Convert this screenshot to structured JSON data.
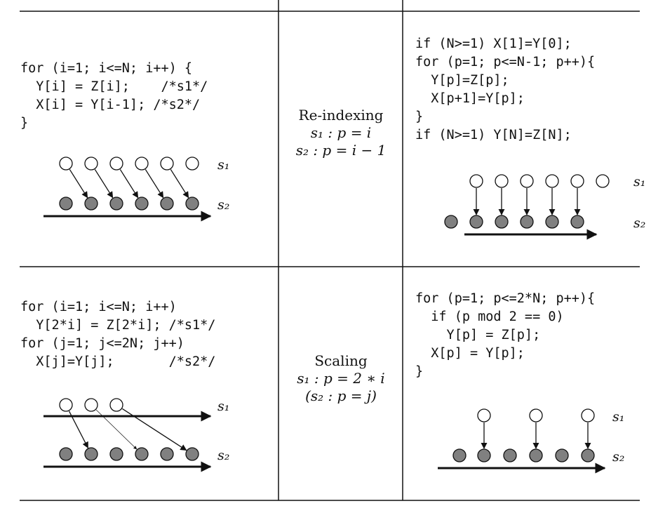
{
  "rows": [
    {
      "left_code": [
        "for (i=1; i<=N; i++) {",
        "  Y[i] = Z[i];    /*s1*/",
        "  X[i] = Y[i-1]; /*s2*/",
        "}"
      ],
      "transform": {
        "name": "Re-indexing",
        "lines": [
          "s₁ : p = i",
          "s₂ : p = i − 1"
        ]
      },
      "right_code": [
        "if (N>=1) X[1]=Y[0];",
        "for (p=1; p<=N-1; p++){",
        "  Y[p]=Z[p];",
        "  X[p+1]=Y[p];",
        "}",
        "if (N>=1) Y[N]=Z[N];"
      ],
      "left_diagram": {
        "s1_label": "s₁",
        "s2_label": "s₂"
      },
      "right_diagram": {
        "s1_label": "s₁",
        "s2_label": "s₂"
      }
    },
    {
      "left_code": [
        "for (i=1; i<=N; i++)",
        "  Y[2*i] = Z[2*i]; /*s1*/",
        "for (j=1; j<=2N; j++)",
        "  X[j]=Y[j];       /*s2*/"
      ],
      "transform": {
        "name": "Scaling",
        "lines": [
          "s₁ : p = 2 ∗ i",
          "(s₂ : p = j)"
        ]
      },
      "right_code": [
        "for (p=1; p<=2*N; p++){",
        "  if (p mod 2 == 0)",
        "    Y[p] = Z[p];",
        "  X[p] = Y[p];",
        "}"
      ],
      "left_diagram": {
        "s1_label": "s₁",
        "s2_label": "s₂"
      },
      "right_diagram": {
        "s1_label": "s₁",
        "s2_label": "s₂"
      }
    }
  ],
  "colors": {
    "white_node": "#ffffff",
    "gray_node": "#808080",
    "stroke": "#111111"
  }
}
